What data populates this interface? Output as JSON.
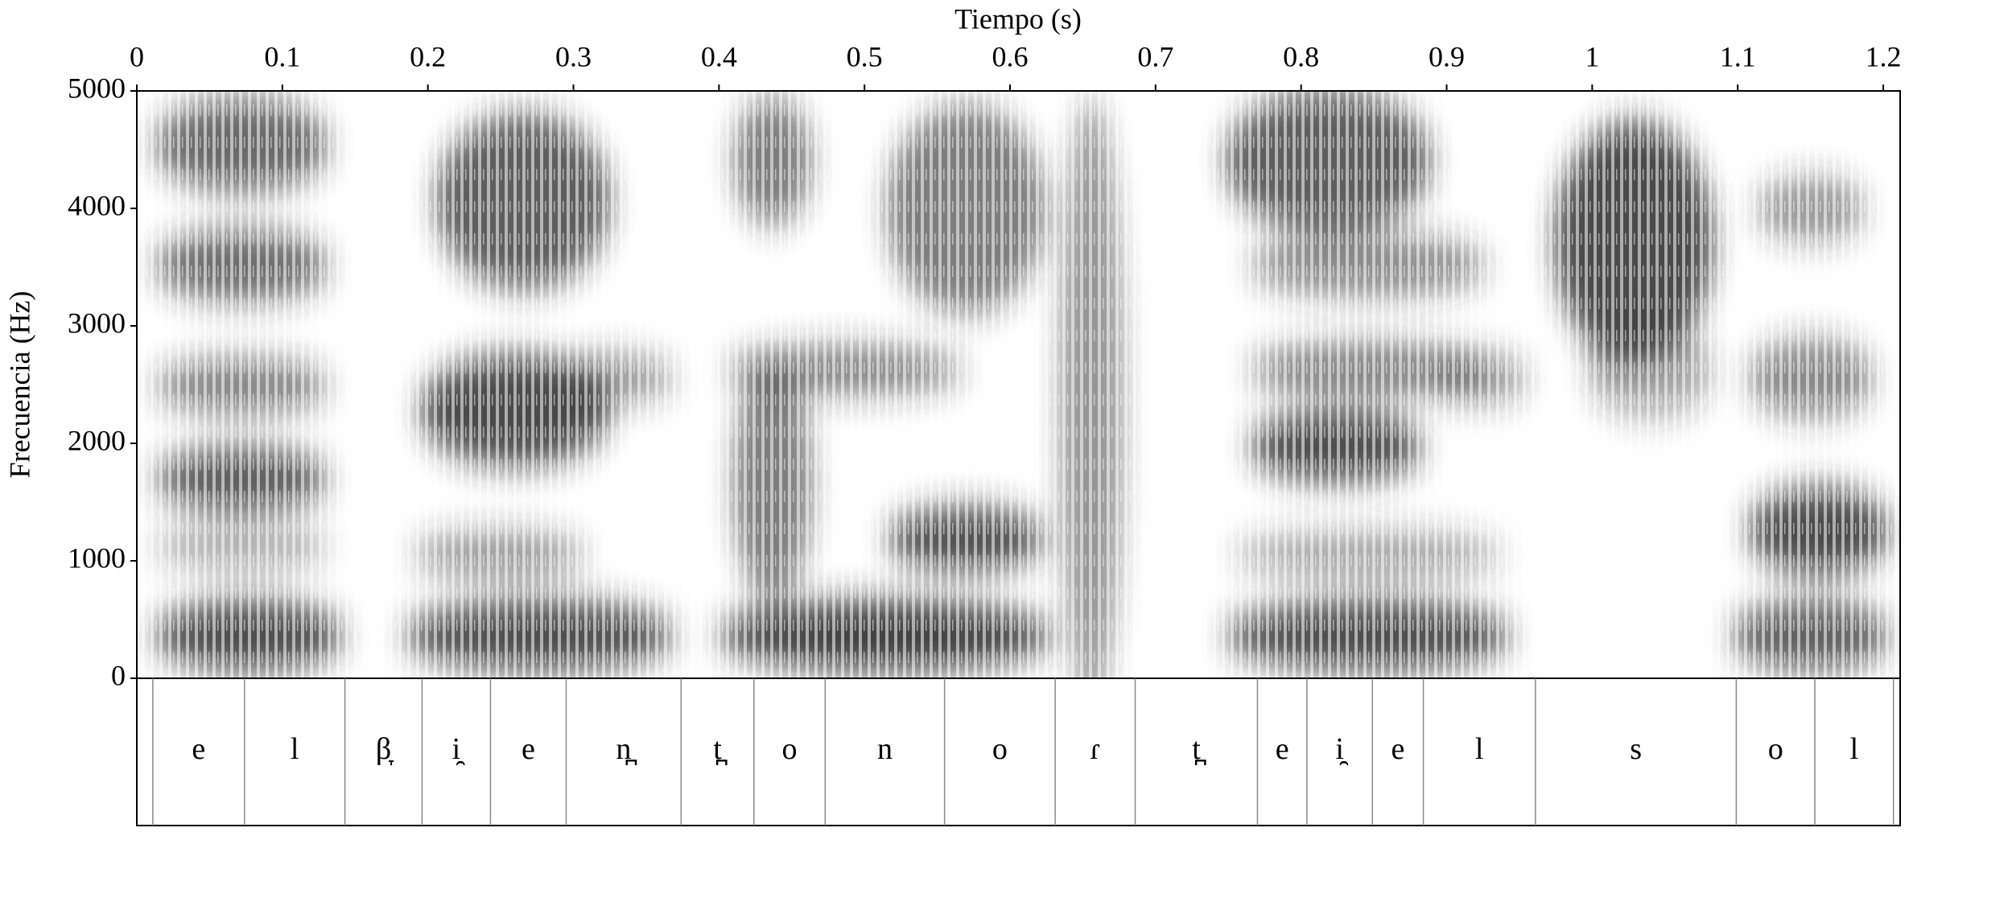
{
  "chart_data": {
    "type": "spectrogram",
    "xlabel": "Tiempo (s)",
    "ylabel": "Frecuencia (Hz)",
    "xlim": [
      0,
      1.2116
    ],
    "xticks": [
      0,
      0.1,
      0.2,
      0.3,
      0.4,
      0.5,
      0.6,
      0.7,
      0.8,
      0.9,
      1,
      1.1,
      1.2
    ],
    "ylim": [
      0,
      5000
    ],
    "yticks": [
      0,
      1000,
      2000,
      3000,
      4000,
      5000
    ],
    "tier": {
      "boundaries": [
        0.011,
        0.074,
        0.143,
        0.196,
        0.243,
        0.295,
        0.374,
        0.424,
        0.473,
        0.555,
        0.631,
        0.686,
        0.77,
        0.804,
        0.849,
        0.884,
        0.961,
        1.099,
        1.153,
        1.207
      ],
      "labels": [
        "e",
        "l",
        "β̞",
        "i̯",
        "e",
        "n̪",
        "t̪",
        "o",
        "n",
        "o",
        "ɾ",
        "t̪",
        "e",
        "i̯",
        "e",
        "l",
        "s",
        "o",
        "l"
      ]
    }
  }
}
